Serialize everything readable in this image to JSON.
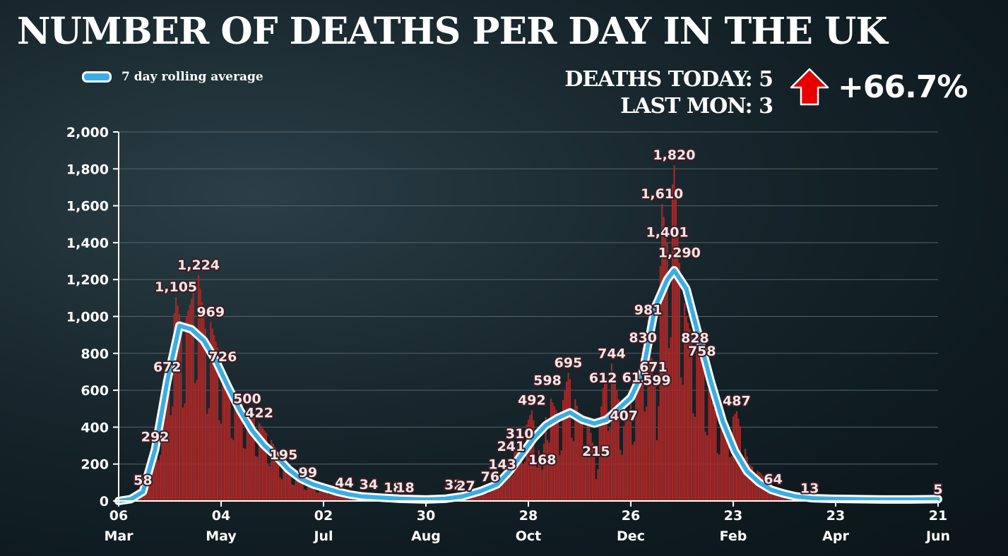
{
  "header": {
    "title": "NUMBER OF DEATHS PER DAY IN THE UK",
    "legend_label": "7 day rolling average"
  },
  "stats": {
    "deaths_today": "DEATHS TODAY: 5",
    "last_mon": "LAST MON: 3",
    "change": "+66.7%",
    "change_direction": "up"
  },
  "colors": {
    "bar": "#a32828",
    "line": "#3aaee4",
    "line_outline": "#ffffff",
    "arrow": "#e60000",
    "grid": "#55656b"
  },
  "chart_data": {
    "type": "bar",
    "ylim": [
      0,
      2000
    ],
    "yticks": [
      "0",
      "200",
      "400",
      "600",
      "800",
      "1,000",
      "1,200",
      "1,400",
      "1,600",
      "1,800",
      "2,000"
    ],
    "ytick_values": [
      0,
      200,
      400,
      600,
      800,
      1000,
      1200,
      1400,
      1600,
      1800,
      2000
    ],
    "x_range": [
      "2020-03-06",
      "2021-06-21"
    ],
    "xticks": [
      {
        "date": "2020-03-06",
        "day": "06",
        "month": "Mar"
      },
      {
        "date": "2020-05-04",
        "day": "04",
        "month": "May"
      },
      {
        "date": "2020-07-02",
        "day": "02",
        "month": "Jul"
      },
      {
        "date": "2020-08-30",
        "day": "30",
        "month": "Aug"
      },
      {
        "date": "2020-10-28",
        "day": "28",
        "month": "Oct"
      },
      {
        "date": "2020-12-26",
        "day": "26",
        "month": "Dec"
      },
      {
        "date": "2021-02-23",
        "day": "23",
        "month": "Feb"
      },
      {
        "date": "2021-04-23",
        "day": "23",
        "month": "Apr"
      },
      {
        "date": "2021-06-21",
        "day": "21",
        "month": "Jun"
      }
    ],
    "bar_anchors": [
      [
        "2020-03-06",
        2
      ],
      [
        "2020-03-13",
        15
      ],
      [
        "2020-03-20",
        58
      ],
      [
        "2020-03-27",
        292
      ],
      [
        "2020-04-03",
        672
      ],
      [
        "2020-04-08",
        1105
      ],
      [
        "2020-04-12",
        920
      ],
      [
        "2020-04-14",
        1000
      ],
      [
        "2020-04-21",
        1224
      ],
      [
        "2020-04-26",
        860
      ],
      [
        "2020-04-28",
        969
      ],
      [
        "2020-05-05",
        726
      ],
      [
        "2020-05-12",
        580
      ],
      [
        "2020-05-19",
        500
      ],
      [
        "2020-05-26",
        422
      ],
      [
        "2020-06-02",
        330
      ],
      [
        "2020-06-09",
        195
      ],
      [
        "2020-06-16",
        150
      ],
      [
        "2020-06-23",
        99
      ],
      [
        "2020-06-30",
        80
      ],
      [
        "2020-07-07",
        60
      ],
      [
        "2020-07-14",
        44
      ],
      [
        "2020-07-21",
        40
      ],
      [
        "2020-07-28",
        34
      ],
      [
        "2020-08-04",
        25
      ],
      [
        "2020-08-11",
        18
      ],
      [
        "2020-08-18",
        18
      ],
      [
        "2020-08-25",
        15
      ],
      [
        "2020-09-01",
        12
      ],
      [
        "2020-09-08",
        20
      ],
      [
        "2020-09-15",
        32
      ],
      [
        "2020-09-22",
        27
      ],
      [
        "2020-09-29",
        60
      ],
      [
        "2020-10-06",
        76
      ],
      [
        "2020-10-13",
        143
      ],
      [
        "2020-10-18",
        241
      ],
      [
        "2020-10-23",
        310
      ],
      [
        "2020-10-30",
        492
      ],
      [
        "2020-11-05",
        168
      ],
      [
        "2020-11-08",
        598
      ],
      [
        "2020-11-15",
        450
      ],
      [
        "2020-11-20",
        695
      ],
      [
        "2020-11-26",
        480
      ],
      [
        "2020-12-02",
        420
      ],
      [
        "2020-12-06",
        215
      ],
      [
        "2020-12-10",
        612
      ],
      [
        "2020-12-15",
        744
      ],
      [
        "2020-12-22",
        407
      ],
      [
        "2020-12-29",
        613
      ],
      [
        "2021-01-02",
        830
      ],
      [
        "2021-01-05",
        981
      ],
      [
        "2021-01-08",
        671
      ],
      [
        "2021-01-10",
        599
      ],
      [
        "2021-01-13",
        1610
      ],
      [
        "2021-01-16",
        1401
      ],
      [
        "2021-01-20",
        1820
      ],
      [
        "2021-01-23",
        1290
      ],
      [
        "2021-01-27",
        1000
      ],
      [
        "2021-02-01",
        828
      ],
      [
        "2021-02-05",
        758
      ],
      [
        "2021-02-12",
        500
      ],
      [
        "2021-02-19",
        400
      ],
      [
        "2021-02-25",
        487
      ],
      [
        "2021-03-04",
        200
      ],
      [
        "2021-03-11",
        150
      ],
      [
        "2021-03-18",
        64
      ],
      [
        "2021-03-25",
        40
      ],
      [
        "2021-04-01",
        30
      ],
      [
        "2021-04-08",
        13
      ],
      [
        "2021-04-15",
        20
      ],
      [
        "2021-04-22",
        15
      ],
      [
        "2021-05-01",
        8
      ],
      [
        "2021-05-15",
        6
      ],
      [
        "2021-06-01",
        5
      ],
      [
        "2021-06-14",
        8
      ],
      [
        "2021-06-21",
        5
      ]
    ],
    "rolling_average": [
      [
        "2020-03-06",
        0
      ],
      [
        "2020-03-13",
        10
      ],
      [
        "2020-03-20",
        50
      ],
      [
        "2020-03-27",
        280
      ],
      [
        "2020-04-03",
        650
      ],
      [
        "2020-04-10",
        950
      ],
      [
        "2020-04-17",
        930
      ],
      [
        "2020-04-24",
        870
      ],
      [
        "2020-05-01",
        760
      ],
      [
        "2020-05-08",
        620
      ],
      [
        "2020-05-15",
        490
      ],
      [
        "2020-05-22",
        380
      ],
      [
        "2020-05-29",
        300
      ],
      [
        "2020-06-05",
        240
      ],
      [
        "2020-06-12",
        170
      ],
      [
        "2020-06-19",
        120
      ],
      [
        "2020-06-26",
        90
      ],
      [
        "2020-07-03",
        70
      ],
      [
        "2020-07-10",
        50
      ],
      [
        "2020-07-17",
        35
      ],
      [
        "2020-07-24",
        25
      ],
      [
        "2020-08-01",
        20
      ],
      [
        "2020-08-15",
        12
      ],
      [
        "2020-08-30",
        8
      ],
      [
        "2020-09-10",
        12
      ],
      [
        "2020-09-20",
        25
      ],
      [
        "2020-10-01",
        55
      ],
      [
        "2020-10-10",
        90
      ],
      [
        "2020-10-17",
        160
      ],
      [
        "2020-10-24",
        250
      ],
      [
        "2020-10-31",
        340
      ],
      [
        "2020-11-07",
        410
      ],
      [
        "2020-11-14",
        450
      ],
      [
        "2020-11-21",
        480
      ],
      [
        "2020-11-28",
        440
      ],
      [
        "2020-12-05",
        420
      ],
      [
        "2020-12-12",
        440
      ],
      [
        "2020-12-19",
        500
      ],
      [
        "2020-12-26",
        560
      ],
      [
        "2021-01-02",
        700
      ],
      [
        "2021-01-09",
        1050
      ],
      [
        "2021-01-16",
        1200
      ],
      [
        "2021-01-20",
        1250
      ],
      [
        "2021-01-27",
        1150
      ],
      [
        "2021-02-03",
        900
      ],
      [
        "2021-02-10",
        650
      ],
      [
        "2021-02-17",
        430
      ],
      [
        "2021-02-24",
        270
      ],
      [
        "2021-03-03",
        160
      ],
      [
        "2021-03-10",
        100
      ],
      [
        "2021-03-17",
        60
      ],
      [
        "2021-03-24",
        40
      ],
      [
        "2021-03-31",
        25
      ],
      [
        "2021-04-10",
        15
      ],
      [
        "2021-04-20",
        12
      ],
      [
        "2021-05-05",
        10
      ],
      [
        "2021-05-20",
        8
      ],
      [
        "2021-06-05",
        8
      ],
      [
        "2021-06-21",
        10
      ]
    ],
    "data_labels": [
      {
        "date": "2020-03-20",
        "value": 58,
        "text": "58"
      },
      {
        "date": "2020-03-27",
        "value": 292,
        "text": "292"
      },
      {
        "date": "2020-04-03",
        "value": 672,
        "text": "672"
      },
      {
        "date": "2020-04-08",
        "value": 1105,
        "text": "1,105"
      },
      {
        "date": "2020-04-21",
        "value": 1224,
        "text": "1,224"
      },
      {
        "date": "2020-04-28",
        "value": 969,
        "text": "969"
      },
      {
        "date": "2020-05-05",
        "value": 726,
        "text": "726"
      },
      {
        "date": "2020-05-19",
        "value": 500,
        "text": "500"
      },
      {
        "date": "2020-05-26",
        "value": 422,
        "text": "422"
      },
      {
        "date": "2020-06-09",
        "value": 195,
        "text": "195"
      },
      {
        "date": "2020-06-23",
        "value": 99,
        "text": "99"
      },
      {
        "date": "2020-07-14",
        "value": 44,
        "text": "44"
      },
      {
        "date": "2020-07-28",
        "value": 34,
        "text": "34"
      },
      {
        "date": "2020-08-11",
        "value": 18,
        "text": "18"
      },
      {
        "date": "2020-08-18",
        "value": 18,
        "text": "18"
      },
      {
        "date": "2020-09-15",
        "value": 32,
        "text": "32"
      },
      {
        "date": "2020-09-22",
        "value": 27,
        "text": "27"
      },
      {
        "date": "2020-10-06",
        "value": 76,
        "text": "76"
      },
      {
        "date": "2020-10-13",
        "value": 143,
        "text": "143"
      },
      {
        "date": "2020-10-18",
        "value": 241,
        "text": "241"
      },
      {
        "date": "2020-10-23",
        "value": 310,
        "text": "310"
      },
      {
        "date": "2020-10-30",
        "value": 492,
        "text": "492"
      },
      {
        "date": "2020-11-05",
        "value": 168,
        "text": "168"
      },
      {
        "date": "2020-11-08",
        "value": 598,
        "text": "598"
      },
      {
        "date": "2020-11-20",
        "value": 695,
        "text": "695"
      },
      {
        "date": "2020-12-06",
        "value": 215,
        "text": "215"
      },
      {
        "date": "2020-12-10",
        "value": 612,
        "text": "612"
      },
      {
        "date": "2020-12-15",
        "value": 744,
        "text": "744"
      },
      {
        "date": "2020-12-22",
        "value": 407,
        "text": "407"
      },
      {
        "date": "2020-12-29",
        "value": 613,
        "text": "613"
      },
      {
        "date": "2021-01-02",
        "value": 830,
        "text": "830"
      },
      {
        "date": "2021-01-05",
        "value": 981,
        "text": "981"
      },
      {
        "date": "2021-01-08",
        "value": 671,
        "text": "671"
      },
      {
        "date": "2021-01-10",
        "value": 599,
        "text": "599"
      },
      {
        "date": "2021-01-13",
        "value": 1610,
        "text": "1,610"
      },
      {
        "date": "2021-01-16",
        "value": 1401,
        "text": "1,401"
      },
      {
        "date": "2021-01-20",
        "value": 1820,
        "text": "1,820"
      },
      {
        "date": "2021-01-23",
        "value": 1290,
        "text": "1,290"
      },
      {
        "date": "2021-02-01",
        "value": 828,
        "text": "828"
      },
      {
        "date": "2021-02-05",
        "value": 758,
        "text": "758"
      },
      {
        "date": "2021-02-25",
        "value": 487,
        "text": "487"
      },
      {
        "date": "2021-03-18",
        "value": 64,
        "text": "64"
      },
      {
        "date": "2021-04-08",
        "value": 13,
        "text": "13"
      },
      {
        "date": "2021-06-21",
        "value": 5,
        "text": "5"
      }
    ]
  }
}
